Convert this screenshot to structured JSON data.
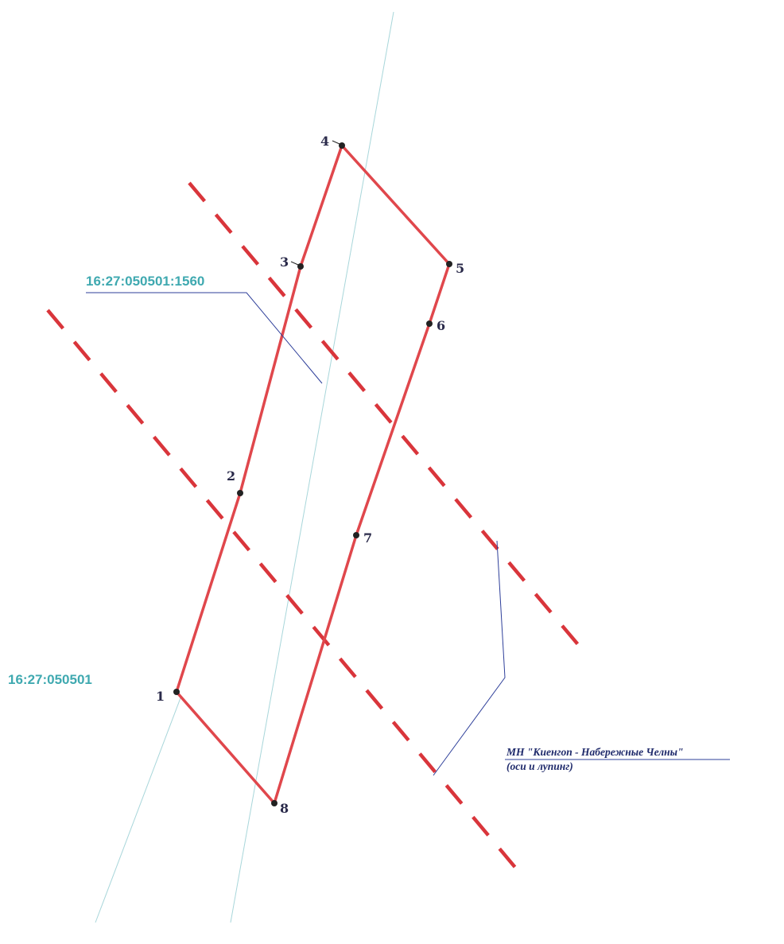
{
  "parcel": {
    "number": "16:27:050501:1560",
    "points": [
      {
        "label": "1"
      },
      {
        "label": "2"
      },
      {
        "label": "3"
      },
      {
        "label": "4"
      },
      {
        "label": "5"
      },
      {
        "label": "6"
      },
      {
        "label": "7"
      },
      {
        "label": "8"
      }
    ]
  },
  "quarter": {
    "number": "16:27:050501"
  },
  "pipeline": {
    "name": "МН \"Киенгоп - Набережные Челны\"",
    "note": "(оси и лупинг)"
  },
  "colors": {
    "boundary": "#e0474c",
    "zone": "#d9353b",
    "leader": "#2e3f9a",
    "cadastral_text": "#3fa9b0",
    "thin_guides": "#a8d6da",
    "vertex": "#222222"
  }
}
